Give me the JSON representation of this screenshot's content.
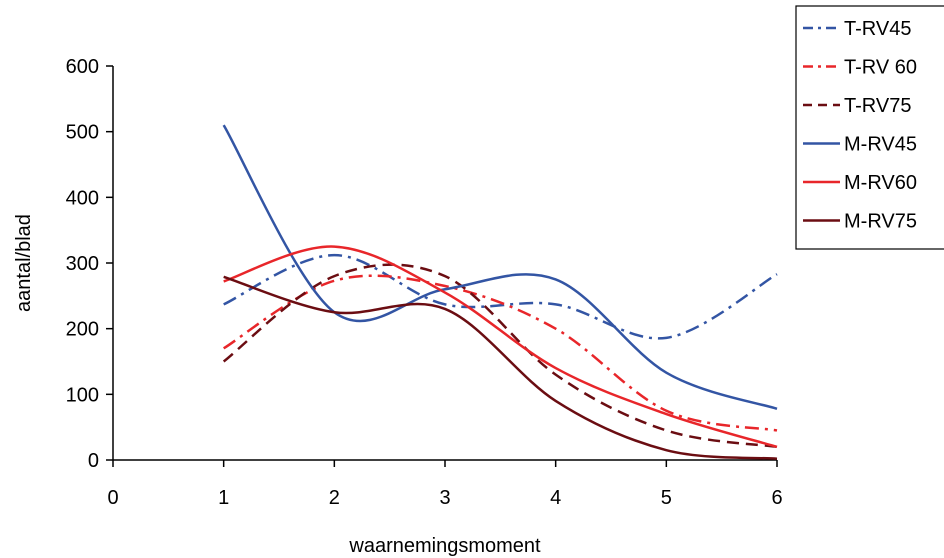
{
  "chart_data": {
    "type": "line",
    "xlabel": "waarnemingsmoment",
    "ylabel": "aantal/blad",
    "xlim": [
      0,
      6
    ],
    "ylim": [
      0,
      600
    ],
    "xticks": [
      "0",
      "1",
      "2",
      "3",
      "4",
      "5",
      "6"
    ],
    "yticks": [
      "0",
      "100",
      "200",
      "300",
      "400",
      "500",
      "600"
    ],
    "grid": false,
    "legend_position": "top-right",
    "x": [
      1,
      2,
      3,
      4,
      5,
      6
    ],
    "series": [
      {
        "name": "T-RV45",
        "color": "#3355a4",
        "dash": "dash-dot",
        "values": [
          237,
          312,
          237,
          237,
          186,
          283
        ]
      },
      {
        "name": "T-RV 60",
        "color": "#e8262a",
        "dash": "dash-dot",
        "values": [
          170,
          273,
          265,
          200,
          75,
          45
        ]
      },
      {
        "name": "T-RV75",
        "color": "#6b0d12",
        "dash": "dash",
        "values": [
          150,
          280,
          280,
          130,
          45,
          20
        ]
      },
      {
        "name": "M-RV45",
        "color": "#3355a4",
        "dash": "solid",
        "values": [
          510,
          225,
          260,
          275,
          133,
          78
        ]
      },
      {
        "name": "M-RV60",
        "color": "#e8262a",
        "dash": "solid",
        "values": [
          272,
          325,
          255,
          140,
          70,
          20
        ]
      },
      {
        "name": "M-RV75",
        "color": "#6b0d12",
        "dash": "solid",
        "values": [
          279,
          225,
          230,
          90,
          15,
          2
        ]
      }
    ]
  }
}
